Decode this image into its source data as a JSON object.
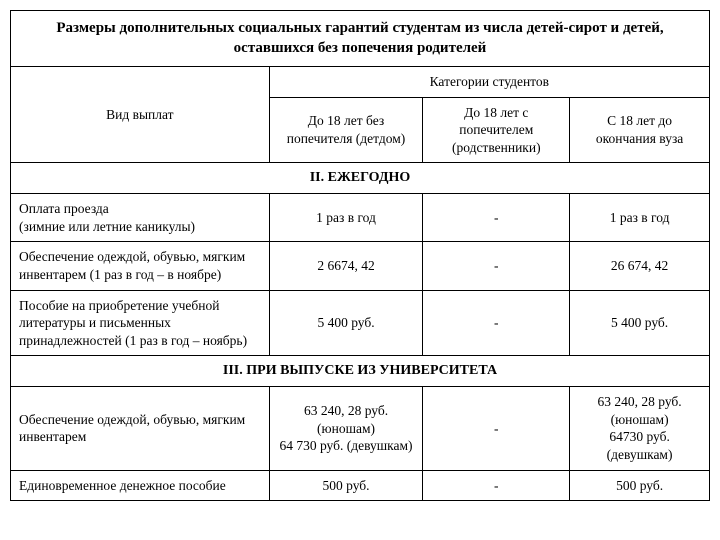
{
  "title": "Размеры дополнительных социальных гарантий студентам из числа детей-сирот и детей, оставшихся без попечения родителей",
  "headers": {
    "kind": "Вид выплат",
    "category": "Категории студентов",
    "c1": "До 18 лет без попечителя (детдом)",
    "c2": "До 18 лет с попечителем (родственники)",
    "c3": "С 18 лет до окончания вуза"
  },
  "section2": {
    "title": "II. ЕЖЕГОДНО",
    "rows": [
      {
        "label": "Оплата проезда\n(зимние или летние каникулы)",
        "v1": "1 раз в год",
        "v2": "-",
        "v3": "1 раз в год"
      },
      {
        "label": "Обеспечение одеждой, обувью, мягким инвентарем (1 раз в год – в ноябре)",
        "v1": "2 6674, 42",
        "v2": "-",
        "v3": "26 674, 42"
      },
      {
        "label": "Пособие на приобретение учебной литературы и письменных принадлежностей (1 раз в год – ноябрь)",
        "v1": "5 400 руб.",
        "v2": "-",
        "v3": "5 400 руб."
      }
    ]
  },
  "section3": {
    "title": "III. ПРИ ВЫПУСКЕ ИЗ УНИВЕРСИТЕТА",
    "rows": [
      {
        "label": "Обеспечение одеждой, обувью, мягким инвентарем",
        "v1": "63 240, 28 руб. (юношам)\n64 730 руб. (девушкам)",
        "v2": "-",
        "v3": "63 240, 28 руб. (юношам)\n64730 руб. (девушкам)"
      },
      {
        "label": "Единовременное денежное пособие",
        "v1": "500 руб.",
        "v2": "-",
        "v3": "500 руб."
      }
    ]
  },
  "styling": {
    "background_color": "#ffffff",
    "border_color": "#000000",
    "font_family": "Times New Roman",
    "title_fontsize": 15,
    "body_fontsize": 13.5,
    "col_widths_pct": [
      37,
      22,
      21,
      20
    ]
  }
}
